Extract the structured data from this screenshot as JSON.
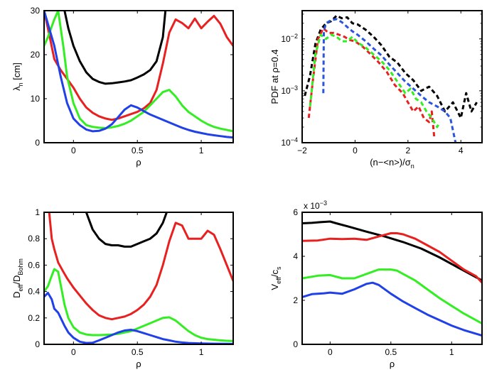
{
  "chart_data": [
    {
      "type": "line",
      "panel": "top-left",
      "xlabel": "ρ",
      "ylabel": "λ",
      "ylabel_sub": "n",
      "ylabel_unit": " [cm]",
      "xlim": [
        -0.23,
        1.25
      ],
      "ylim": [
        0,
        30
      ],
      "xticks": [
        0,
        0.5,
        1
      ],
      "xtick_labels": [
        "0",
        "0.5",
        "1"
      ],
      "yticks": [
        0,
        10,
        20,
        30
      ],
      "ytick_labels": [
        "0",
        "10",
        "20",
        "30"
      ],
      "series": [
        {
          "name": "black",
          "color": "#000000",
          "x": [
            -0.07,
            -0.04,
            0,
            0.05,
            0.1,
            0.15,
            0.2,
            0.25,
            0.3,
            0.35,
            0.4,
            0.45,
            0.5,
            0.55,
            0.6,
            0.65,
            0.7,
            0.72
          ],
          "y": [
            30,
            26,
            22,
            18.5,
            16,
            14.5,
            13.8,
            13.4,
            13.5,
            13.7,
            13.9,
            14.2,
            14.8,
            15.5,
            16.5,
            18.5,
            24,
            30
          ]
        },
        {
          "name": "red",
          "color": "#e82020",
          "x": [
            -0.23,
            -0.2,
            -0.15,
            -0.1,
            -0.05,
            0,
            0.05,
            0.1,
            0.15,
            0.2,
            0.25,
            0.3,
            0.35,
            0.4,
            0.45,
            0.5,
            0.55,
            0.6,
            0.65,
            0.7,
            0.75,
            0.8,
            0.85,
            0.9,
            0.95,
            1.0,
            1.05,
            1.1,
            1.15,
            1.2,
            1.25
          ],
          "y": [
            30,
            26,
            19,
            16.5,
            14.5,
            12.5,
            10,
            8,
            6.8,
            6,
            5.5,
            5.2,
            5.5,
            6,
            6.5,
            7,
            7.8,
            9,
            12,
            18,
            25,
            28,
            27.2,
            26,
            28.2,
            26,
            27.5,
            28.8,
            27,
            24,
            22
          ]
        },
        {
          "name": "green",
          "color": "#33ee22",
          "x": [
            -0.23,
            -0.2,
            -0.15,
            -0.12,
            -0.08,
            -0.05,
            0,
            0.05,
            0.1,
            0.15,
            0.2,
            0.25,
            0.3,
            0.35,
            0.4,
            0.45,
            0.5,
            0.55,
            0.6,
            0.65,
            0.7,
            0.75,
            0.8,
            0.85,
            0.9,
            0.95,
            1.0,
            1.05,
            1.1,
            1.15,
            1.2,
            1.25
          ],
          "y": [
            22,
            24,
            28,
            30,
            22,
            15,
            9,
            5.5,
            4,
            3.6,
            3.4,
            3.3,
            3.5,
            3.8,
            4.3,
            5,
            6,
            7,
            8.5,
            10,
            11.5,
            12,
            10.5,
            8.5,
            7,
            6,
            5,
            4.2,
            3.6,
            3.2,
            2.9,
            2.6
          ]
        },
        {
          "name": "blue",
          "color": "#2040e8",
          "x": [
            -0.23,
            -0.2,
            -0.15,
            -0.1,
            -0.05,
            0,
            0.05,
            0.1,
            0.15,
            0.2,
            0.25,
            0.3,
            0.35,
            0.4,
            0.45,
            0.5,
            0.55,
            0.6,
            0.65,
            0.7,
            0.75,
            0.8,
            0.85,
            0.9,
            0.95,
            1.0,
            1.05,
            1.1,
            1.15,
            1.2,
            1.25
          ],
          "y": [
            30,
            27,
            22,
            15,
            9,
            5.5,
            4,
            3,
            2.6,
            2.7,
            3.2,
            4.2,
            5.8,
            7.5,
            8.5,
            8,
            7.2,
            6.4,
            5.8,
            5.2,
            4.6,
            4,
            3.4,
            2.9,
            2.5,
            2.2,
            1.9,
            1.7,
            1.5,
            1.3,
            1.2
          ]
        }
      ]
    },
    {
      "type": "line",
      "panel": "top-right",
      "yscale": "log",
      "xlabel": "(n−<n>)/σ",
      "xlabel_sub": "n",
      "ylabel": "PDF at ρ=0.4",
      "xlim": [
        -2,
        4.8
      ],
      "ylim": [
        0.0001,
        0.035
      ],
      "xticks": [
        -2,
        0,
        2,
        4
      ],
      "xtick_labels": [
        "−2",
        "0",
        "2",
        "4"
      ],
      "yticks": [
        0.0001,
        0.001,
        0.01
      ],
      "ytick_base": "10",
      "ytick_exps": [
        "−4",
        "−3",
        "−2"
      ],
      "series": [
        {
          "name": "black",
          "color": "#000000",
          "dash": true,
          "x": [
            -1.9,
            -1.7,
            -1.5,
            -1.3,
            -1.1,
            -0.9,
            -0.7,
            -0.5,
            -0.3,
            -0.1,
            0.1,
            0.4,
            0.7,
            1.0,
            1.3,
            1.6,
            1.9,
            2.2,
            2.5,
            2.8,
            3.1,
            3.4,
            3.7,
            4.0,
            4.2,
            4.4,
            4.6
          ],
          "y": [
            0.0008,
            0.002,
            0.008,
            0.015,
            0.02,
            0.022,
            0.028,
            0.025,
            0.026,
            0.02,
            0.019,
            0.015,
            0.011,
            0.0075,
            0.0045,
            0.0035,
            0.0022,
            0.0016,
            0.001,
            0.0012,
            0.0008,
            0.0004,
            0.0006,
            0.0003,
            0.0009,
            0.0004,
            0.0006
          ]
        },
        {
          "name": "red",
          "color": "#e82020",
          "dash": true,
          "x": [
            -1.75,
            -1.6,
            -1.4,
            -1.2,
            -1.0,
            -0.8,
            -0.6,
            -0.4,
            -0.2,
            0,
            0.3,
            0.6,
            0.9,
            1.2,
            1.5,
            1.8,
            2.0,
            2.2,
            2.4,
            2.6,
            2.8,
            2.9,
            3.0
          ],
          "y": [
            0.0003,
            0.0015,
            0.01,
            0.016,
            0.013,
            0.013,
            0.012,
            0.011,
            0.0095,
            0.009,
            0.007,
            0.005,
            0.0035,
            0.0023,
            0.0013,
            0.0009,
            0.0006,
            0.0004,
            0.0005,
            0.0003,
            0.00025,
            0.0004,
            0.00012
          ]
        },
        {
          "name": "green",
          "color": "#33ee22",
          "dash": true,
          "x": [
            -1.7,
            -1.5,
            -1.3,
            -1.1,
            -0.9,
            -0.7,
            -0.5,
            -0.3,
            -0.1,
            0.1,
            0.4,
            0.7,
            1.0,
            1.3,
            1.6,
            1.9,
            2.1,
            2.3,
            2.5,
            2.7,
            2.9,
            3.1,
            3.2
          ],
          "y": [
            0.0005,
            0.005,
            0.012,
            0.01,
            0.012,
            0.011,
            0.009,
            0.009,
            0.011,
            0.0085,
            0.0068,
            0.005,
            0.0037,
            0.0025,
            0.0015,
            0.0009,
            0.0011,
            0.0007,
            0.0006,
            0.0004,
            0.0003,
            0.0002,
            0.00025
          ]
        },
        {
          "name": "blue",
          "color": "#2a55dd",
          "dash": true,
          "x": [
            -1.2,
            -1.18,
            -1.1,
            -0.9,
            -0.7,
            -0.5,
            -0.3,
            -0.1,
            0.1,
            0.4,
            0.7,
            1.0,
            1.3,
            1.6,
            1.9,
            2.2,
            2.5,
            2.8,
            3.1,
            3.4,
            3.6,
            3.8
          ],
          "y": [
            0.0009,
            0.014,
            0.02,
            0.023,
            0.024,
            0.021,
            0.017,
            0.014,
            0.012,
            0.009,
            0.0065,
            0.0048,
            0.0032,
            0.0022,
            0.0015,
            0.0011,
            0.0008,
            0.0006,
            0.0005,
            0.0004,
            0.0003,
            0.0001
          ]
        }
      ]
    },
    {
      "type": "line",
      "panel": "bottom-left",
      "xlabel": "ρ",
      "ylabel": "D",
      "ylabel_sub": "eff",
      "ylabel_mid": "/D",
      "ylabel_sub2": "Bohm",
      "xlim": [
        -0.23,
        1.25
      ],
      "ylim": [
        0,
        1
      ],
      "xticks": [
        0,
        0.5,
        1
      ],
      "xtick_labels": [
        "0",
        "0.5",
        "1"
      ],
      "yticks": [
        0,
        0.2,
        0.4,
        0.6,
        0.8,
        1
      ],
      "ytick_labels": [
        "0",
        "0.2",
        "0.4",
        "0.6",
        "0.8",
        "1"
      ],
      "series": [
        {
          "name": "black",
          "color": "#000000",
          "x": [
            0.1,
            0.15,
            0.2,
            0.25,
            0.3,
            0.35,
            0.4,
            0.45,
            0.5,
            0.55,
            0.6,
            0.65,
            0.7,
            0.73
          ],
          "y": [
            1,
            0.87,
            0.8,
            0.76,
            0.75,
            0.75,
            0.74,
            0.74,
            0.76,
            0.78,
            0.8,
            0.84,
            0.92,
            1
          ]
        },
        {
          "name": "red",
          "color": "#e82020",
          "x": [
            -0.19,
            -0.17,
            -0.15,
            -0.12,
            -0.08,
            -0.05,
            0,
            0.05,
            0.1,
            0.15,
            0.2,
            0.25,
            0.3,
            0.35,
            0.4,
            0.45,
            0.5,
            0.55,
            0.6,
            0.65,
            0.7,
            0.75,
            0.8,
            0.85,
            0.9,
            0.95,
            1.0,
            1.05,
            1.1,
            1.15,
            1.2,
            1.25
          ],
          "y": [
            1,
            0.8,
            0.72,
            0.62,
            0.55,
            0.5,
            0.43,
            0.37,
            0.31,
            0.26,
            0.22,
            0.2,
            0.19,
            0.2,
            0.21,
            0.23,
            0.26,
            0.3,
            0.36,
            0.45,
            0.6,
            0.78,
            0.92,
            0.9,
            0.8,
            0.8,
            0.8,
            0.86,
            0.83,
            0.72,
            0.6,
            0.48
          ]
        },
        {
          "name": "green",
          "color": "#33ee22",
          "x": [
            -0.23,
            -0.2,
            -0.17,
            -0.15,
            -0.12,
            -0.1,
            -0.07,
            -0.04,
            0,
            0.05,
            0.1,
            0.15,
            0.2,
            0.25,
            0.3,
            0.35,
            0.4,
            0.45,
            0.5,
            0.55,
            0.6,
            0.65,
            0.7,
            0.75,
            0.8,
            0.85,
            0.9,
            0.95,
            1.0,
            1.05,
            1.1,
            1.15,
            1.2,
            1.25
          ],
          "y": [
            0.4,
            0.44,
            0.52,
            0.57,
            0.55,
            0.45,
            0.3,
            0.2,
            0.13,
            0.09,
            0.075,
            0.07,
            0.07,
            0.072,
            0.075,
            0.08,
            0.09,
            0.1,
            0.12,
            0.14,
            0.16,
            0.18,
            0.2,
            0.205,
            0.18,
            0.14,
            0.1,
            0.07,
            0.05,
            0.04,
            0.035,
            0.03,
            0.027,
            0.025
          ]
        },
        {
          "name": "blue",
          "color": "#2040e8",
          "x": [
            -0.23,
            -0.2,
            -0.17,
            -0.15,
            -0.12,
            -0.1,
            -0.07,
            -0.04,
            0,
            0.05,
            0.1,
            0.15,
            0.2,
            0.25,
            0.3,
            0.35,
            0.4,
            0.45,
            0.5,
            0.55,
            0.6,
            0.65,
            0.7,
            0.75,
            0.8,
            0.85,
            0.9,
            1.0,
            1.1,
            1.2,
            1.25
          ],
          "y": [
            0.36,
            0.39,
            0.34,
            0.27,
            0.24,
            0.2,
            0.14,
            0.09,
            0.05,
            0.02,
            0.01,
            0.012,
            0.03,
            0.05,
            0.07,
            0.09,
            0.105,
            0.11,
            0.1,
            0.085,
            0.07,
            0.055,
            0.04,
            0.03,
            0.02,
            0.014,
            0.01,
            0.007,
            0.005,
            0.004,
            0.003
          ]
        }
      ]
    },
    {
      "type": "line",
      "panel": "bottom-right",
      "xlabel": "ρ",
      "ylabel": "V",
      "ylabel_sub": "eff",
      "ylabel_mid": "/c",
      "ylabel_sub2": "s",
      "scale_label": "x 10",
      "scale_exp": "−3",
      "xlim": [
        -0.23,
        1.25
      ],
      "ylim": [
        0,
        0.006
      ],
      "xticks": [
        0,
        0.5,
        1
      ],
      "xtick_labels": [
        "0",
        "0.5",
        "1"
      ],
      "yticks": [
        0,
        0.002,
        0.004,
        0.006
      ],
      "ytick_labels": [
        "0",
        "2",
        "4",
        "6"
      ],
      "series": [
        {
          "name": "black",
          "color": "#000000",
          "x": [
            -0.23,
            -0.15,
            -0.08,
            0,
            0.05,
            0.15,
            0.3,
            0.45,
            0.6,
            0.75,
            0.9,
            1.05,
            1.15,
            1.25
          ],
          "y": [
            0.0055,
            0.00552,
            0.00555,
            0.00558,
            0.0055,
            0.00535,
            0.00512,
            0.0049,
            0.00465,
            0.00435,
            0.00395,
            0.0035,
            0.0032,
            0.0029
          ]
        },
        {
          "name": "red",
          "color": "#e82020",
          "x": [
            -0.23,
            -0.1,
            0,
            0.1,
            0.2,
            0.3,
            0.4,
            0.5,
            0.55,
            0.6,
            0.7,
            0.8,
            0.9,
            1.0,
            1.1,
            1.2,
            1.25
          ],
          "y": [
            0.0047,
            0.00472,
            0.0048,
            0.00478,
            0.0048,
            0.00475,
            0.0049,
            0.00505,
            0.00505,
            0.005,
            0.0048,
            0.0045,
            0.0042,
            0.0038,
            0.0034,
            0.0031,
            0.0028
          ]
        },
        {
          "name": "green",
          "color": "#33ee22",
          "x": [
            -0.23,
            -0.1,
            0,
            0.1,
            0.2,
            0.3,
            0.4,
            0.5,
            0.55,
            0.6,
            0.7,
            0.8,
            0.9,
            1.0,
            1.1,
            1.2,
            1.25
          ],
          "y": [
            0.003,
            0.00312,
            0.00315,
            0.003,
            0.003,
            0.0032,
            0.0034,
            0.0034,
            0.00335,
            0.0032,
            0.0029,
            0.0025,
            0.0021,
            0.00175,
            0.0014,
            0.0011,
            0.00095
          ]
        },
        {
          "name": "blue",
          "color": "#2040e8",
          "x": [
            -0.23,
            -0.15,
            -0.05,
            0,
            0.1,
            0.2,
            0.3,
            0.35,
            0.4,
            0.5,
            0.6,
            0.7,
            0.8,
            0.9,
            1.0,
            1.1,
            1.2,
            1.25
          ],
          "y": [
            0.00215,
            0.00228,
            0.00232,
            0.00235,
            0.0023,
            0.0025,
            0.00275,
            0.0028,
            0.0027,
            0.0023,
            0.00195,
            0.00165,
            0.00135,
            0.0011,
            0.00085,
            0.00065,
            0.00048,
            0.0004
          ]
        }
      ]
    }
  ]
}
